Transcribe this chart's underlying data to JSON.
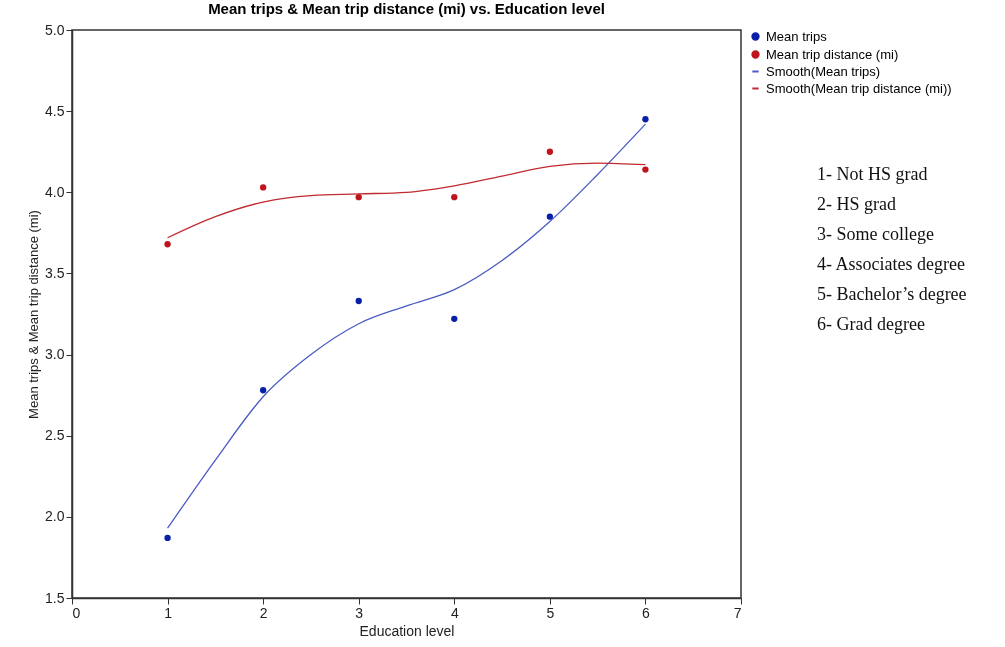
{
  "chart_data": {
    "type": "scatter",
    "title": "Mean trips & Mean trip distance (mi) vs. Education level",
    "xlabel": "Education level",
    "ylabel": "Mean trips & Mean trip distance (mi)",
    "x": [
      1,
      2,
      3,
      4,
      5,
      6
    ],
    "series": [
      {
        "name": "Mean trips",
        "color": "#0a1fa8",
        "marker": "circle",
        "values": [
          1.87,
          2.78,
          3.33,
          3.22,
          3.85,
          4.45
        ]
      },
      {
        "name": "Mean trip distance (mi)",
        "color": "#c0141c",
        "marker": "circle",
        "values": [
          3.68,
          4.03,
          3.97,
          3.97,
          4.25,
          4.14
        ]
      },
      {
        "name": "Smooth(Mean trips)",
        "color": "#4a5bc4",
        "type": "line",
        "marker": "none",
        "line_style": "solid",
        "x": [
          1,
          1.5,
          2,
          2.5,
          3,
          3.5,
          4,
          4.5,
          5,
          5.5,
          6
        ],
        "values": [
          1.93,
          2.35,
          2.74,
          3.0,
          3.19,
          3.3,
          3.4,
          3.58,
          3.82,
          4.11,
          4.42
        ]
      },
      {
        "name": "Smooth(Mean trip distance (mi))",
        "color": "#c02a30",
        "type": "line",
        "marker": "none",
        "line_style": "solid",
        "x": [
          1,
          1.5,
          2,
          2.5,
          3,
          3.5,
          4,
          4.5,
          5,
          5.5,
          6
        ],
        "values": [
          3.72,
          3.85,
          3.94,
          3.98,
          3.99,
          4.0,
          4.04,
          4.1,
          4.16,
          4.18,
          4.17
        ]
      }
    ],
    "xlim": [
      0,
      7
    ],
    "xticks": [
      0,
      1,
      2,
      3,
      4,
      5,
      6,
      7
    ],
    "ylim": [
      1.5,
      5.0
    ],
    "yticks": [
      {
        "value": 1.5,
        "label": "1.5"
      },
      {
        "value": 2.0,
        "label": "2.0"
      },
      {
        "value": 2.5,
        "label": "2.5"
      },
      {
        "value": 3.0,
        "label": "3.0"
      },
      {
        "value": 3.5,
        "label": "3.5"
      },
      {
        "value": 4.0,
        "label": "4.0"
      },
      {
        "value": 4.5,
        "label": "4.5"
      },
      {
        "value": 5.0,
        "label": "5.0"
      }
    ],
    "grid": false,
    "legend": "top right",
    "annotations": [
      "1-  Not HS grad",
      "2-  HS grad",
      "3-  Some college",
      "4-  Associates degree",
      "5-  Bachelor’s degree",
      "6-  Grad degree"
    ]
  }
}
